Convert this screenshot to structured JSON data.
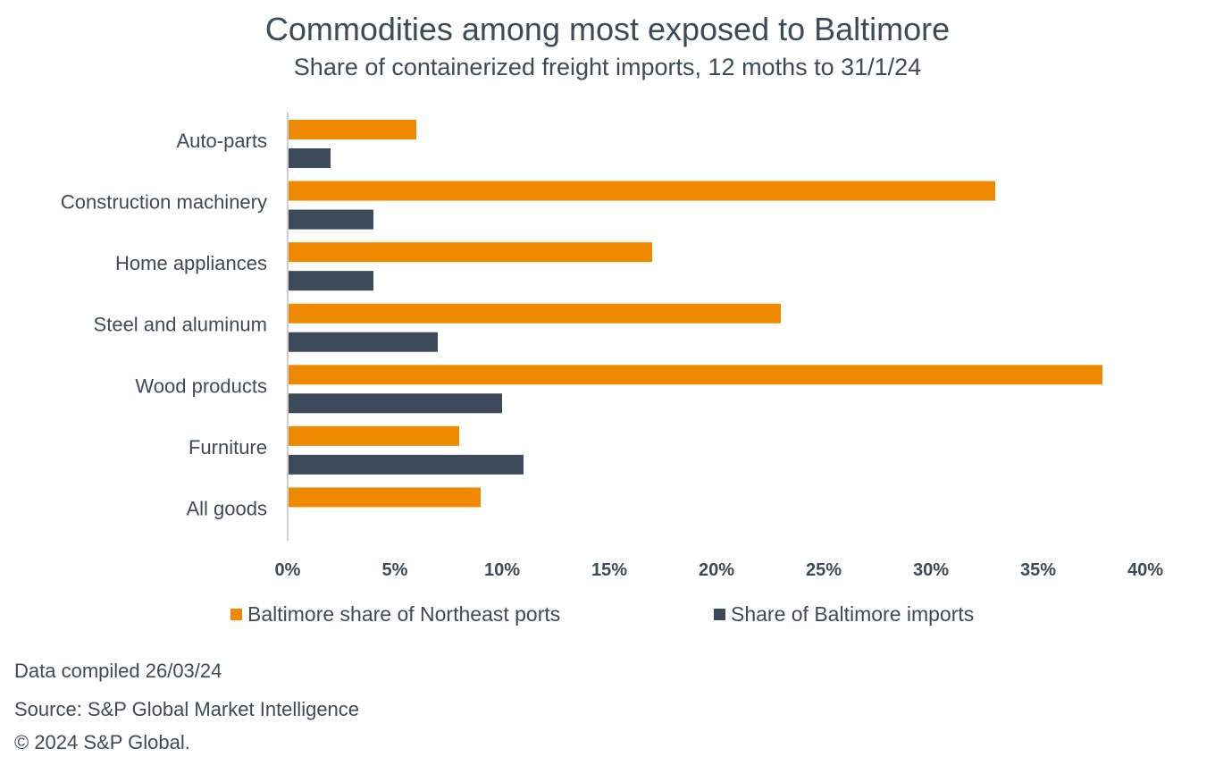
{
  "chart_data": {
    "type": "bar",
    "orientation": "horizontal",
    "title": "Commodities among most exposed to Baltimore",
    "subtitle": "Share of containerized freight imports, 12 moths to 31/1/24",
    "categories": [
      "Auto-parts",
      "Construction machinery",
      "Home appliances",
      "Steel and aluminum",
      "Wood products",
      "Furniture",
      "All goods"
    ],
    "series": [
      {
        "name": "Baltimore share of Northeast ports",
        "color": "#ef8a00",
        "values": [
          6,
          33,
          17,
          23,
          38,
          8,
          9
        ]
      },
      {
        "name": "Share of Baltimore imports",
        "color": "#3d4a5a",
        "values": [
          2,
          4,
          4,
          7,
          10,
          11,
          null
        ]
      }
    ],
    "xlim": [
      0,
      40
    ],
    "xticks": [
      "0%",
      "5%",
      "10%",
      "15%",
      "20%",
      "25%",
      "30%",
      "35%",
      "40%"
    ],
    "xtick_values": [
      0,
      5,
      10,
      15,
      20,
      25,
      30,
      35,
      40
    ],
    "grid": false,
    "legend_position": "bottom"
  },
  "footer": {
    "compiled": "Data compiled 26/03/24",
    "source": "Source: S&P Global Market Intelligence",
    "copyright": "© 2024 S&P Global."
  }
}
